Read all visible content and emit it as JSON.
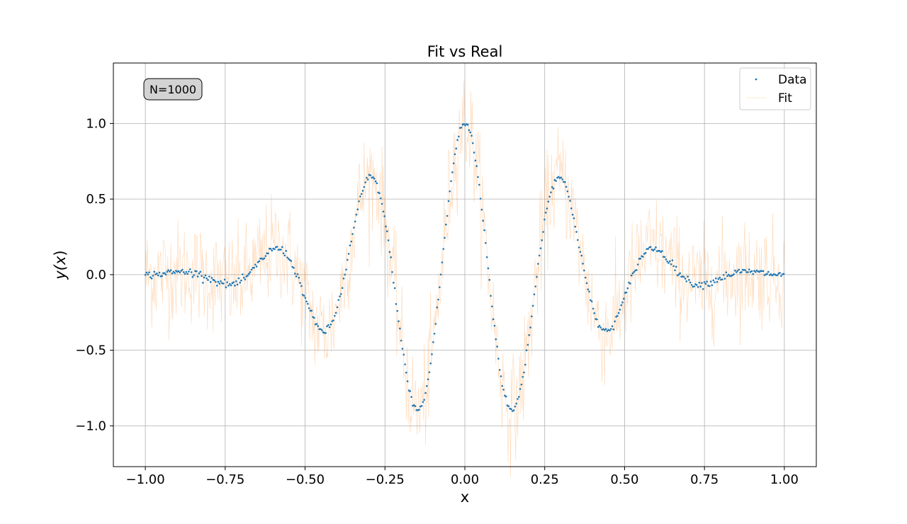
{
  "chart_data": {
    "type": "scatter",
    "title": "Fit vs Real",
    "xlabel": "x",
    "ylabel_prefix": "y(",
    "ylabel_var": "x",
    "ylabel_suffix": ")",
    "annotation": "N=1000",
    "xlim": [
      -1.1,
      1.1
    ],
    "ylim": [
      -1.27,
      1.4
    ],
    "x_ticks": [
      -1.0,
      -0.75,
      -0.5,
      -0.25,
      0.0,
      0.25,
      0.5,
      0.75,
      1.0
    ],
    "x_tick_labels": [
      "−1.00",
      "−0.75",
      "−0.50",
      "−0.25",
      "0.00",
      "0.25",
      "0.50",
      "0.75",
      "1.00"
    ],
    "y_ticks": [
      -1.0,
      -0.5,
      0.0,
      0.5,
      1.0
    ],
    "y_tick_labels": [
      "−1.0",
      "−0.5",
      "0.0",
      "0.5",
      "1.0"
    ],
    "grid": true,
    "legend_position": "top-right",
    "series": [
      {
        "name": "Data",
        "kind": "scatter",
        "color": "#1f77b4",
        "n_points": 1000,
        "x_range": [
          -1.0,
          1.0
        ],
        "model": "cos(10*pi*x/1) * exp(-(x/0.45)^2) style wave packet",
        "peak_values": {
          "x": [
            0.0,
            0.15,
            -0.15,
            0.3,
            -0.3,
            0.46,
            -0.46,
            0.61,
            -0.61,
            0.77,
            -0.77
          ],
          "y": [
            1.0,
            -0.87,
            -0.87,
            0.58,
            0.58,
            -0.3,
            -0.3,
            0.12,
            0.12,
            -0.03,
            -0.03
          ]
        }
      },
      {
        "name": "Fit",
        "kind": "line",
        "color": "#ff7f0e",
        "noise_amplitude": 0.17
      }
    ]
  }
}
